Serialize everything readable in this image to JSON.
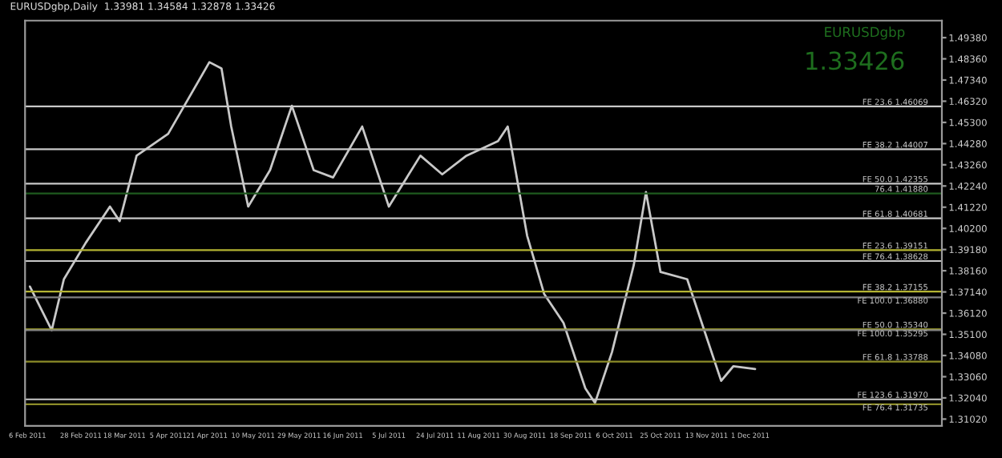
{
  "chart_data": {
    "type": "line",
    "title": "EURUSDgbp,Daily  1.33981 1.34584 1.32878 1.33426",
    "annotations": [
      "EURUSDgbp",
      "1.33426"
    ],
    "x": [
      "2011-02-07",
      "2011-02-16",
      "2011-02-21",
      "2011-03-02",
      "2011-03-12",
      "2011-03-16",
      "2011-03-23",
      "2011-04-05",
      "2011-04-22",
      "2011-04-27",
      "2011-05-01",
      "2011-05-08",
      "2011-05-17",
      "2011-05-26",
      "2011-06-04",
      "2011-06-12",
      "2011-06-24",
      "2011-07-05",
      "2011-07-18",
      "2011-07-27",
      "2011-08-06",
      "2011-08-19",
      "2011-08-23",
      "2011-08-31",
      "2011-09-07",
      "2011-09-15",
      "2011-09-24",
      "2011-09-28",
      "2011-10-05",
      "2011-10-14",
      "2011-10-19",
      "2011-10-25",
      "2011-11-05",
      "2011-11-11",
      "2011-11-19",
      "2011-11-24",
      "2011-12-03"
    ],
    "series": [
      {
        "color": "#c8c8c8",
        "values": [
          1.374,
          1.353,
          1.3775,
          1.395,
          1.4125,
          1.4055,
          1.437,
          1.4475,
          1.482,
          1.479,
          1.451,
          1.4125,
          1.43,
          1.461,
          1.43,
          1.4265,
          1.451,
          1.4125,
          1.437,
          1.428,
          1.437,
          1.444,
          1.451,
          1.3985,
          1.3705,
          1.3565,
          1.325,
          1.318,
          1.3425,
          1.3845,
          1.4195,
          1.381,
          1.3775,
          1.3565,
          1.3286,
          1.3356,
          1.3343
        ]
      }
    ],
    "xlim": [
      "2011-02-05",
      "2012-02-18"
    ],
    "xticks": [
      {
        "value": "2011-02-06",
        "label": "6 Feb 2011"
      },
      {
        "value": "2011-02-28",
        "label": "28 Feb 2011"
      },
      {
        "value": "2011-03-18",
        "label": "18 Mar 2011"
      },
      {
        "value": "2011-04-05",
        "label": "5 Apr 2011"
      },
      {
        "value": "2011-04-21",
        "label": "21 Apr 2011"
      },
      {
        "value": "2011-05-10",
        "label": "10 May 2011"
      },
      {
        "value": "2011-05-29",
        "label": "29 May 2011"
      },
      {
        "value": "2011-06-16",
        "label": "16 Jun 2011"
      },
      {
        "value": "2011-07-05",
        "label": "5 Jul 2011"
      },
      {
        "value": "2011-07-24",
        "label": "24 Jul 2011"
      },
      {
        "value": "2011-08-11",
        "label": "11 Aug 2011"
      },
      {
        "value": "2011-08-30",
        "label": "30 Aug 2011"
      },
      {
        "value": "2011-09-18",
        "label": "18 Sep 2011"
      },
      {
        "value": "2011-10-06",
        "label": "6 Oct 2011"
      },
      {
        "value": "2011-10-25",
        "label": "25 Oct 2011"
      },
      {
        "value": "2011-11-13",
        "label": "13 Nov 2011"
      },
      {
        "value": "2011-12-01",
        "label": "1 Dec 2011"
      }
    ],
    "ylim": [
      1.3069,
      1.502
    ],
    "yticks": [
      {
        "value": 1.3102,
        "label": "1.31020"
      },
      {
        "value": 1.3204,
        "label": "1.32040"
      },
      {
        "value": 1.3306,
        "label": "1.33060"
      },
      {
        "value": 1.3408,
        "label": "1.34080"
      },
      {
        "value": 1.351,
        "label": "1.35100"
      },
      {
        "value": 1.3612,
        "label": "1.36120"
      },
      {
        "value": 1.3714,
        "label": "1.37140"
      },
      {
        "value": 1.3816,
        "label": "1.38160"
      },
      {
        "value": 1.3918,
        "label": "1.39180"
      },
      {
        "value": 1.402,
        "label": "1.40200"
      },
      {
        "value": 1.4122,
        "label": "1.41220"
      },
      {
        "value": 1.4224,
        "label": "1.42240"
      },
      {
        "value": 1.4326,
        "label": "1.43260"
      },
      {
        "value": 1.4428,
        "label": "1.44280"
      },
      {
        "value": 1.453,
        "label": "1.45300"
      },
      {
        "value": 1.4632,
        "label": "1.46320"
      },
      {
        "value": 1.4734,
        "label": "1.47340"
      },
      {
        "value": 1.4836,
        "label": "1.48360"
      },
      {
        "value": 1.4938,
        "label": "1.49380"
      }
    ],
    "ref_lines": [
      {
        "axis": "y",
        "value": 1.46069,
        "label": "FE 23.6 1.46069",
        "color": "#c8c8c8"
      },
      {
        "axis": "y",
        "value": 1.44007,
        "label": "FE 38.2 1.44007",
        "color": "#c8c8c8"
      },
      {
        "axis": "y",
        "value": 1.42355,
        "label": "FE 50.0 1.42355",
        "color": "#c8c8c8"
      },
      {
        "axis": "y",
        "value": 1.4188,
        "label": "76.4 1.41880",
        "color": "#1e5a1e"
      },
      {
        "axis": "y",
        "value": 1.40681,
        "label": "FE 61.8 1.40681",
        "color": "#c8c8c8"
      },
      {
        "axis": "y",
        "value": 1.39151,
        "label": "FE 23.6 1.39151",
        "color": "#b4b432"
      },
      {
        "axis": "y",
        "value": 1.38628,
        "label": "FE 76.4 1.38628",
        "color": "#c8c8c8"
      },
      {
        "axis": "y",
        "value": 1.37155,
        "label": "FE 38.2 1.37155",
        "color": "#b4b432"
      },
      {
        "axis": "y",
        "value": 1.3688,
        "label": "FE 100.0 1.36880",
        "color": "#808080"
      },
      {
        "axis": "y",
        "value": 1.3534,
        "label": "FE 50.0 1.35340",
        "color": "#b4b432"
      },
      {
        "axis": "y",
        "value": 1.35295,
        "label": "FE 100.0 1.35295",
        "color": "#808080"
      },
      {
        "axis": "y",
        "value": 1.33788,
        "label": "FE 61.8 1.33788",
        "color": "#8c8c28"
      },
      {
        "axis": "y",
        "value": 1.3197,
        "label": "FE 123.6 1.31970",
        "color": "#c8c8c8"
      },
      {
        "axis": "y",
        "value": 1.31735,
        "label": "FE 76.4 1.31735",
        "color": "#8c8c28"
      }
    ],
    "grid": false,
    "legend": false
  }
}
